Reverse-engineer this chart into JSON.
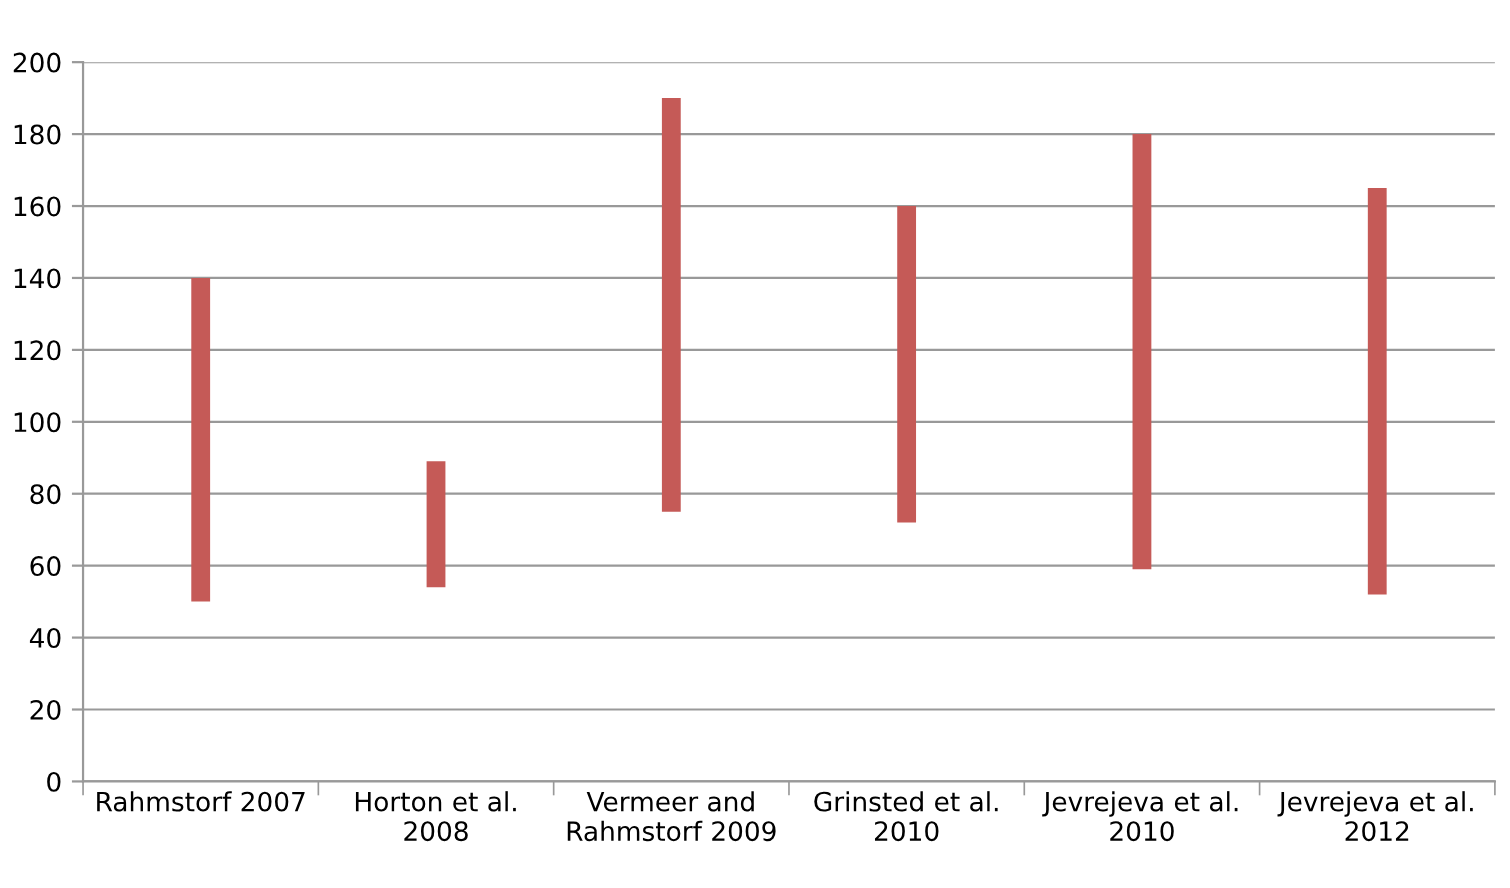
{
  "chart_data": {
    "type": "bar",
    "categories": [
      "Rahmstorf 2007",
      "Horton et al. 2008",
      "Vermeer and Rahmstorf 2009",
      "Grinsted et al. 2010",
      "Jevrejeva et al. 2010",
      "Jevrejeva et al. 2012"
    ],
    "base": [
      50,
      54,
      75,
      72,
      59,
      52
    ],
    "values": [
      90,
      35,
      115,
      88,
      121,
      113
    ],
    "color": "#c55a57",
    "ylim": [
      0,
      200
    ],
    "yticks": [
      0,
      20,
      40,
      60,
      80,
      100,
      120,
      140,
      160,
      180,
      200
    ],
    "grid": "y"
  }
}
